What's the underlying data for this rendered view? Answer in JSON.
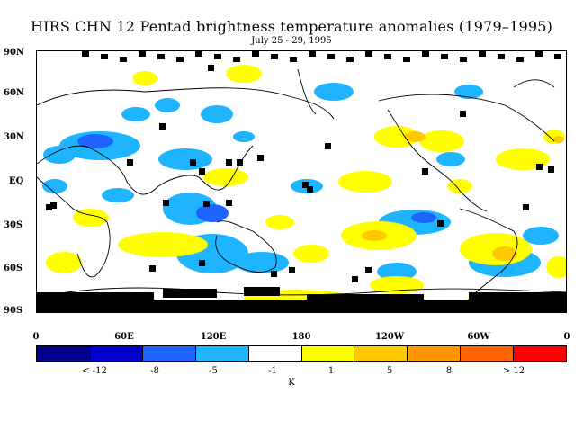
{
  "title": "HIRS CHN 12 Pentad brightness temperature anomalies (1979–1995)",
  "subtitle": "July 25 - 29, 1995",
  "lat_labels": [
    "90N",
    "60N",
    "30N",
    "EQ",
    "30S",
    "60S",
    "90S"
  ],
  "lon_labels": [
    "0",
    "60E",
    "120E",
    "180",
    "120W",
    "60W",
    "0"
  ],
  "colorbar": {
    "colors": [
      "#00008b",
      "#0000cd",
      "#1e64ff",
      "#1eb4ff",
      "#ffffff",
      "#ffff00",
      "#ffc800",
      "#ff9600",
      "#ff6400",
      "#ff0000"
    ],
    "labels": [
      "< -12",
      "-8",
      "-5",
      "-1",
      "1",
      "5",
      "8",
      "> 12"
    ],
    "unit": "K"
  },
  "map_colors": {
    "land_outline": "#000000",
    "missing": "#000000",
    "cold": "#1eb4ff",
    "very_cold": "#1e64ff",
    "warm": "#ffff00",
    "very_warm": "#ffc800"
  }
}
